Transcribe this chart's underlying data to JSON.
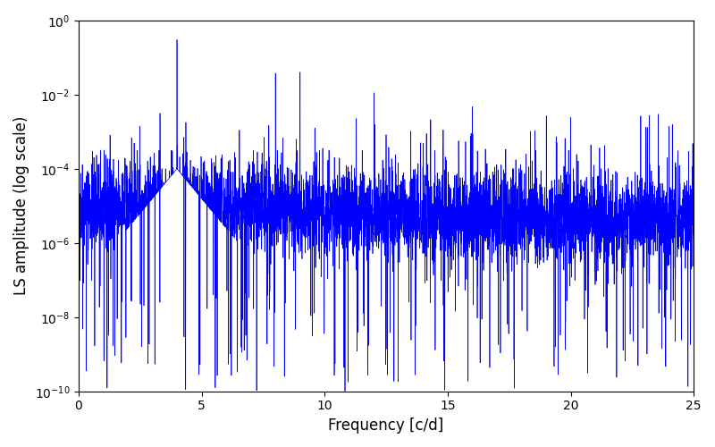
{
  "xlabel": "Frequency [c/d]",
  "ylabel": "LS amplitude (log scale)",
  "xlim": [
    0,
    25
  ],
  "ylim": [
    1e-10,
    1.0
  ],
  "line_color": "#0000ff",
  "line_width": 0.5,
  "background_color": "#ffffff",
  "figsize": [
    8.0,
    5.0
  ],
  "dpi": 100,
  "peak1_freq": 4.0,
  "peak1_amp": 0.3,
  "peak2_freq": 9.0,
  "peak2_amp": 0.04,
  "noise_floor_log": -5.0,
  "noise_scale": 0.6,
  "seed": 42,
  "n_points": 5000
}
